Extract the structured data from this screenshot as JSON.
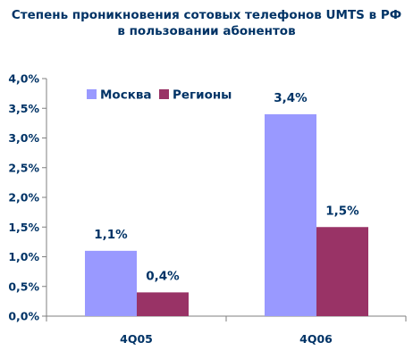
{
  "chart_data": {
    "type": "bar",
    "title_lines": [
      "Степень проникновения сотовых телефонов UMTS в РФ",
      "в пользовании абонентов"
    ],
    "categories": [
      "4Q05",
      "4Q06"
    ],
    "series": [
      {
        "name": "Москва",
        "values": [
          1.1,
          3.4
        ],
        "labels": [
          "1,1%",
          "3,4%"
        ],
        "color": "#9999ff"
      },
      {
        "name": "Регионы",
        "values": [
          0.4,
          1.5
        ],
        "labels": [
          "0,4%",
          "1,5%"
        ],
        "color": "#993366"
      }
    ],
    "ylim": [
      0,
      4.0
    ],
    "yticks": [
      0,
      0.5,
      1.0,
      1.5,
      2.0,
      2.5,
      3.0,
      3.5,
      4.0
    ],
    "ytick_labels": [
      "0,0%",
      "0,5%",
      "1,0%",
      "1,5%",
      "2,0%",
      "2,5%",
      "3,0%",
      "3,5%",
      "4,0%"
    ],
    "grid": false,
    "legend_position": "top-left"
  }
}
